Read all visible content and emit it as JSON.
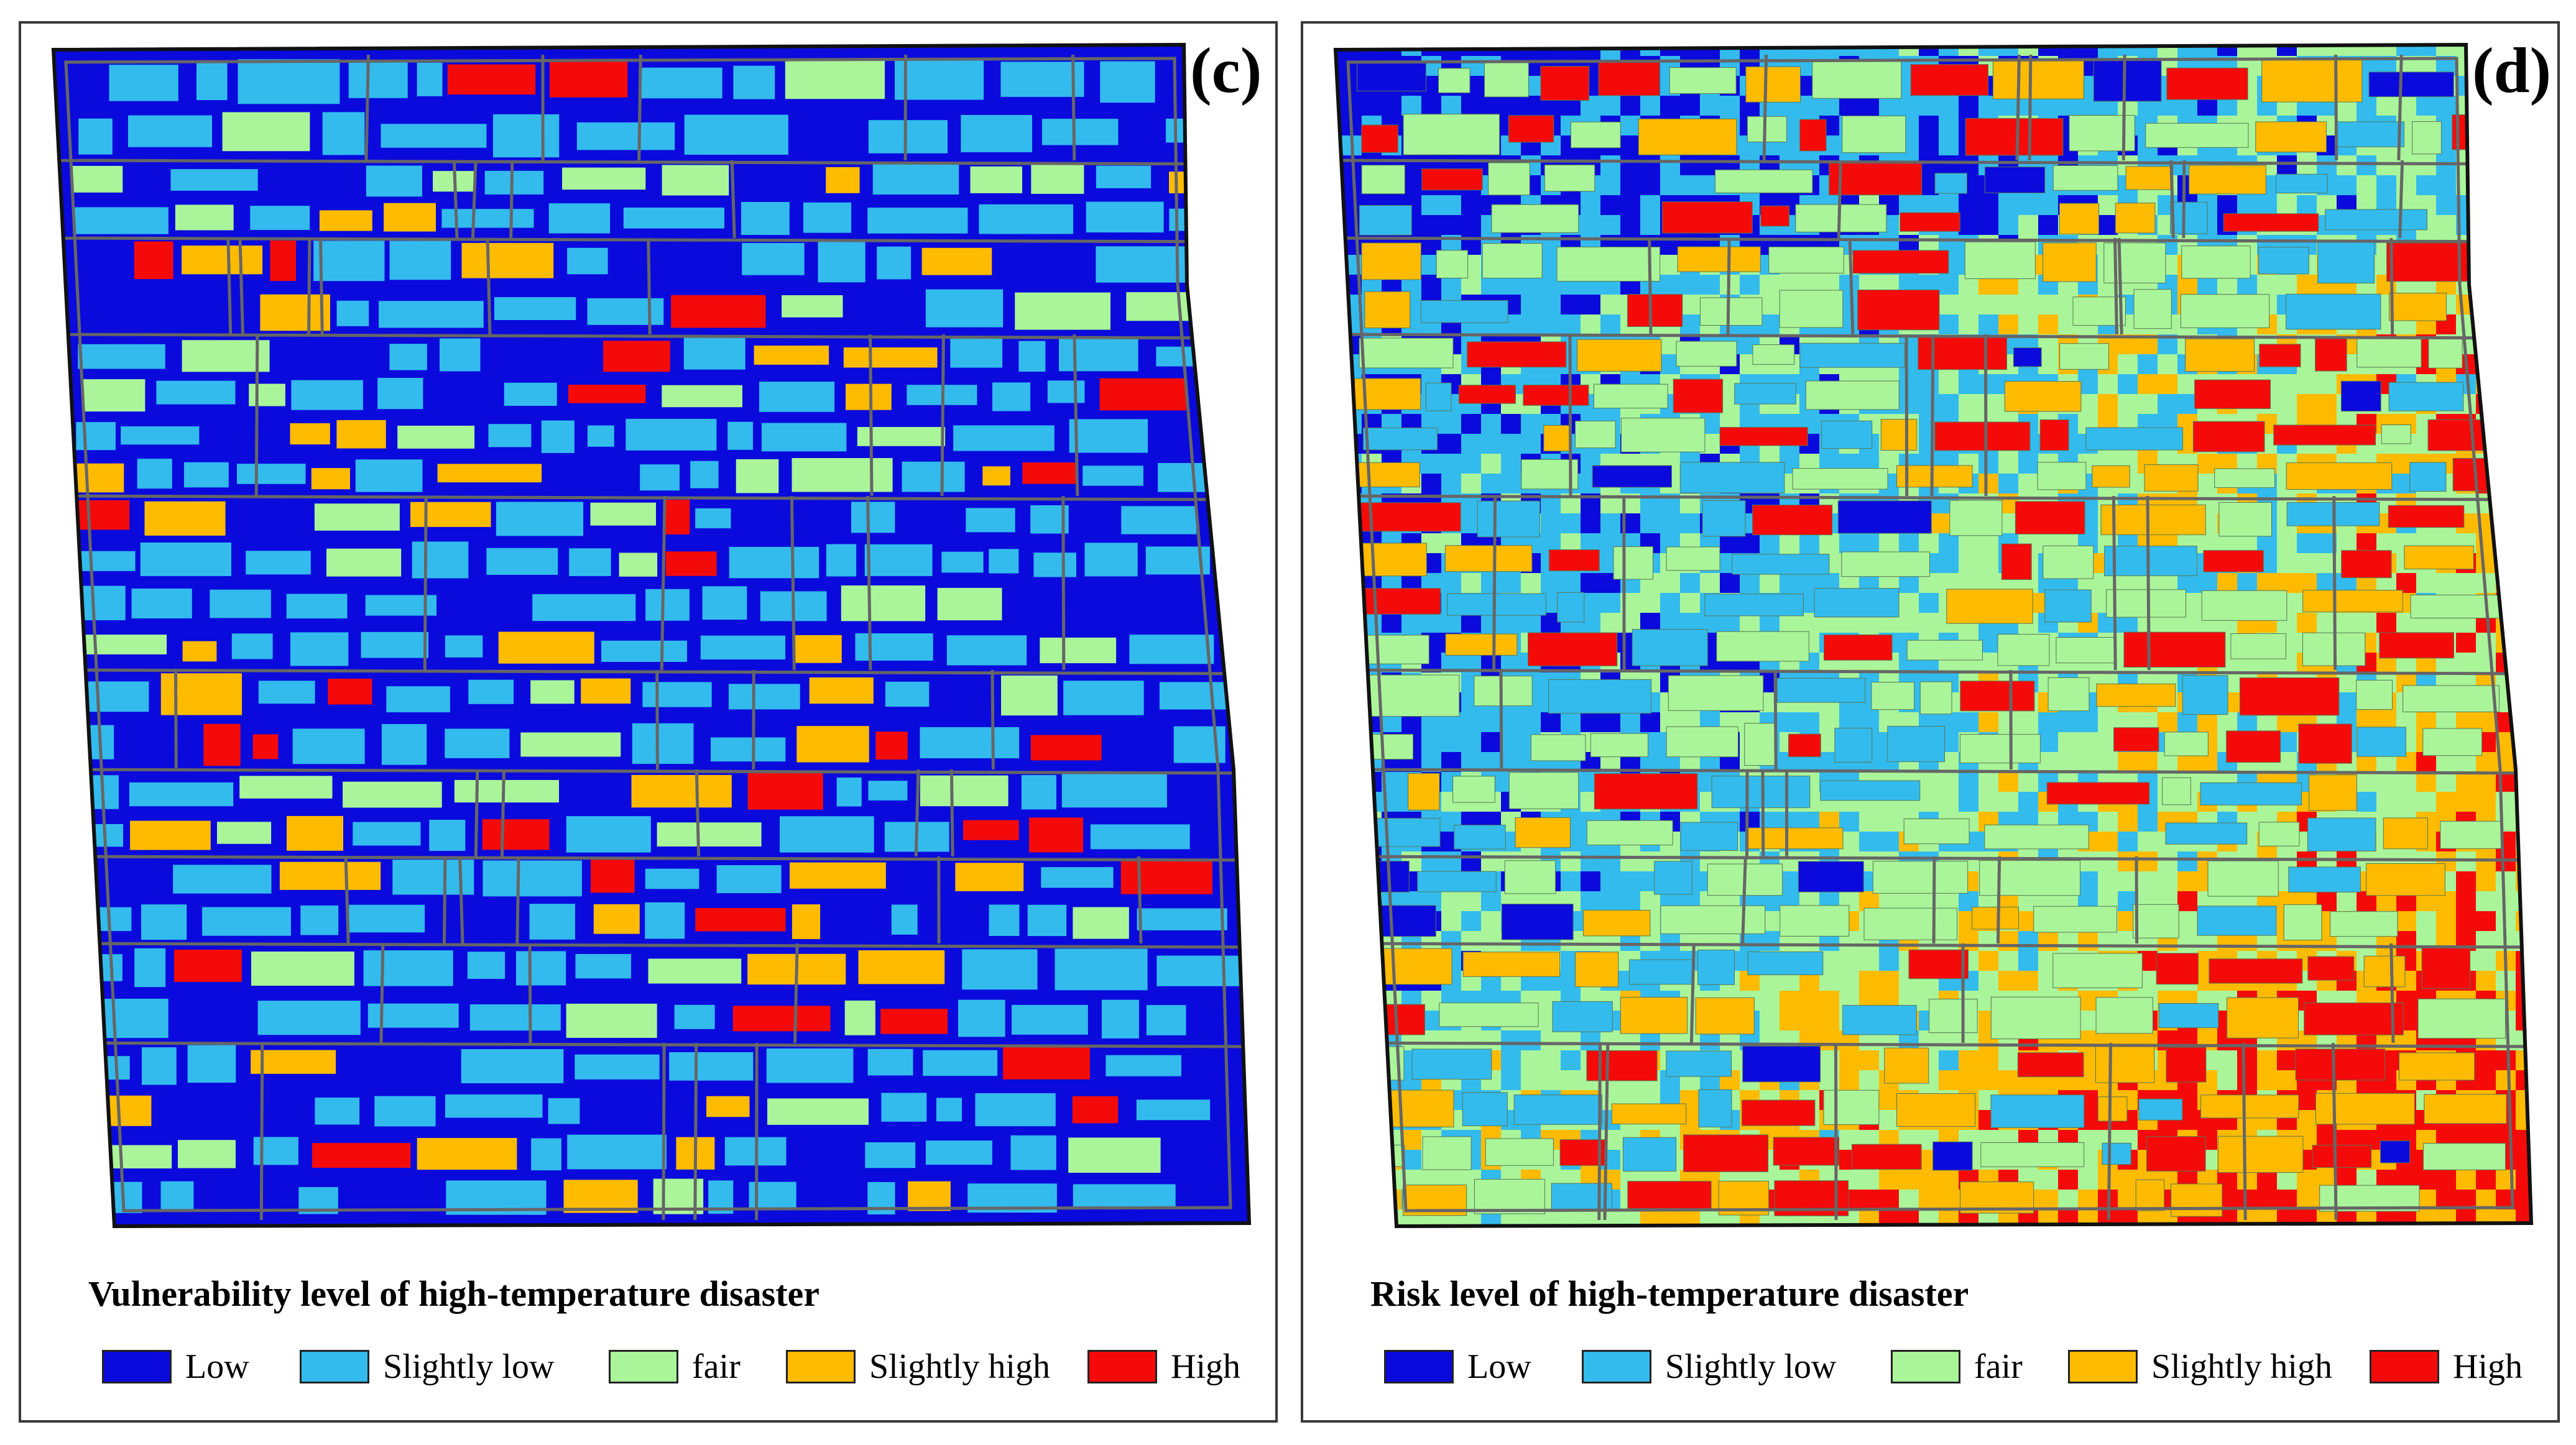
{
  "colors": {
    "low": "#0A0ADC",
    "slightly_low": "#33BBEE",
    "fair": "#AAF599",
    "slightly_high": "#FFBB00",
    "high": "#F50A0A",
    "road": "#666666",
    "outline": "#111111"
  },
  "legend": {
    "items": [
      {
        "label": "Low",
        "color": "#0A0ADC"
      },
      {
        "label": "Slightly low",
        "color": "#33BBEE"
      },
      {
        "label": "fair",
        "color": "#AAF599"
      },
      {
        "label": "Slightly high",
        "color": "#FFBB00"
      },
      {
        "label": "High",
        "color": "#F50A0A"
      }
    ]
  },
  "panels": [
    {
      "id": "c",
      "label": "(c)",
      "caption": "Vulnerability level of high-temperature disaster",
      "background_class": "low"
    },
    {
      "id": "d",
      "label": "(d)",
      "caption": "Risk level of high-temperature disaster",
      "background_class": "mixed"
    }
  ]
}
